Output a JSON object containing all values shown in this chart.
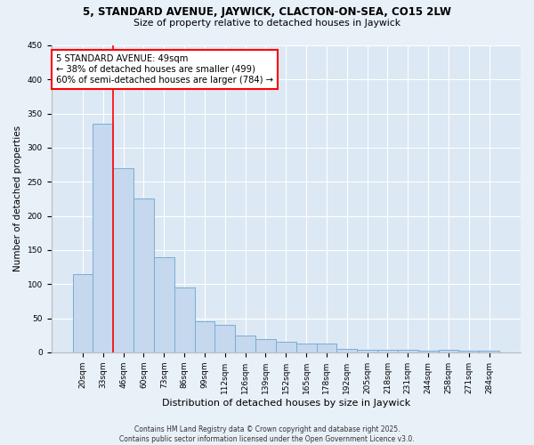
{
  "title_line1": "5, STANDARD AVENUE, JAYWICK, CLACTON-ON-SEA, CO15 2LW",
  "title_line2": "Size of property relative to detached houses in Jaywick",
  "categories": [
    "20sqm",
    "33sqm",
    "46sqm",
    "60sqm",
    "73sqm",
    "86sqm",
    "99sqm",
    "112sqm",
    "126sqm",
    "139sqm",
    "152sqm",
    "165sqm",
    "178sqm",
    "192sqm",
    "205sqm",
    "218sqm",
    "231sqm",
    "244sqm",
    "258sqm",
    "271sqm",
    "284sqm"
  ],
  "values": [
    115,
    335,
    270,
    225,
    140,
    95,
    45,
    40,
    25,
    20,
    15,
    13,
    13,
    5,
    4,
    4,
    4,
    2,
    4,
    2,
    2
  ],
  "bar_color": "#c5d8ee",
  "bar_edge_color": "#7aadd4",
  "ylabel": "Number of detached properties",
  "xlabel": "Distribution of detached houses by size in Jaywick",
  "ylim": [
    0,
    450
  ],
  "yticks": [
    0,
    50,
    100,
    150,
    200,
    250,
    300,
    350,
    400,
    450
  ],
  "annotation_text": "5 STANDARD AVENUE: 49sqm\n← 38% of detached houses are smaller (499)\n60% of semi-detached houses are larger (784) →",
  "red_line_x": 1.5,
  "bg_color": "#e8f0f8",
  "plot_bg_color": "#dce8f4",
  "footer": "Contains HM Land Registry data © Crown copyright and database right 2025.\nContains public sector information licensed under the Open Government Licence v3.0."
}
